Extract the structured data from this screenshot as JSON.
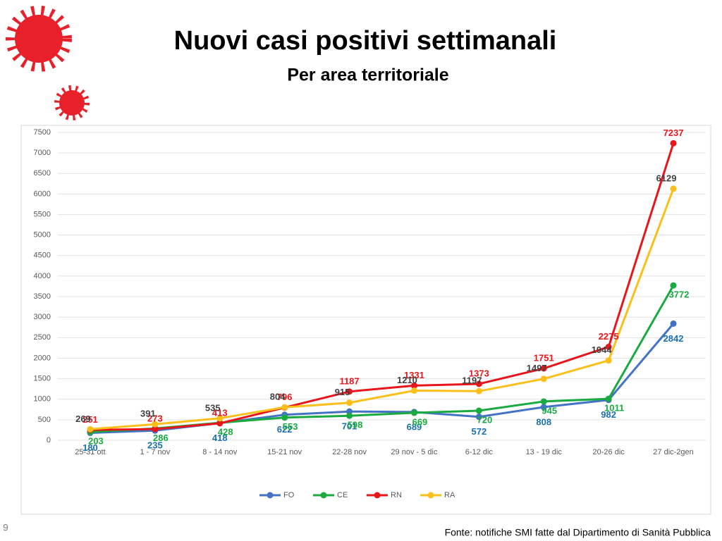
{
  "title": "Nuovi casi positivi settimanali",
  "subtitle": "Per area territoriale",
  "footnote": "Fonte: notifiche SMI fatte dal Dipartimento di Sanità Pubblica",
  "page_number": "9",
  "chart_data": {
    "type": "line",
    "categories": [
      "25-31 ott",
      "1 - 7 nov",
      "8 - 14 nov",
      "15-21 nov",
      "22-28 nov",
      "29 nov - 5 dic",
      "6-12 dic",
      "13 - 19 dic",
      "20-26 dic",
      "27 dic-2gen"
    ],
    "series": [
      {
        "name": "FO",
        "color": "#4472c4",
        "label_color": "#1a70b0",
        "values": [
          180,
          235,
          418,
          622,
          701,
          689,
          572,
          808,
          982,
          2842
        ]
      },
      {
        "name": "CE",
        "color": "#1aab40",
        "label_color": "#1aab40",
        "values": [
          203,
          286,
          428,
          553,
          598,
          669,
          720,
          945,
          1011,
          3772
        ]
      },
      {
        "name": "RN",
        "color": "#e8151b",
        "label_color": "#e8151b",
        "values": [
          251,
          273,
          413,
          796,
          1187,
          1331,
          1373,
          1751,
          2275,
          7237
        ]
      },
      {
        "name": "RA",
        "color": "#fbbf1a",
        "label_color": "#404040",
        "values": [
          269,
          391,
          535,
          804,
          915,
          1210,
          1197,
          1497,
          1944,
          6129
        ]
      }
    ],
    "ylim": [
      0,
      7500
    ],
    "yticks": [
      0,
      500,
      1000,
      1500,
      2000,
      2500,
      3000,
      3500,
      4000,
      4500,
      5000,
      5500,
      6000,
      6500,
      7000,
      7500
    ],
    "grid": true,
    "legend": "bottom"
  }
}
